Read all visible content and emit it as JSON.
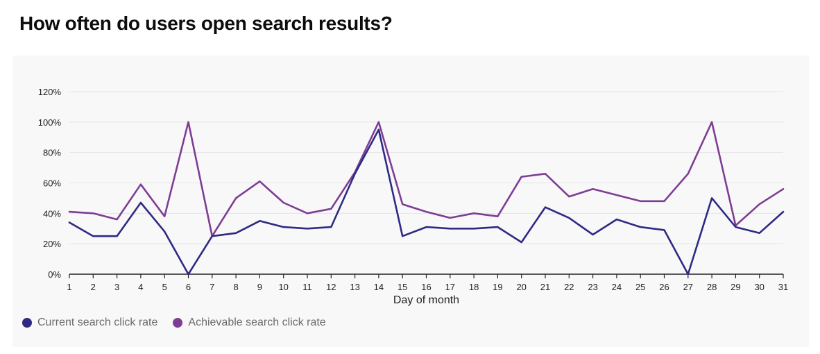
{
  "title": "How often do users open search results?",
  "colors": {
    "current": "#2e2a84",
    "achievable": "#7e3d93",
    "grid": "#e4e4e8",
    "axis": "#222222"
  },
  "chart_data": {
    "type": "line",
    "xlabel": "Day of month",
    "ylabel": "",
    "x": [
      1,
      2,
      3,
      4,
      5,
      6,
      7,
      8,
      9,
      10,
      11,
      12,
      13,
      14,
      15,
      16,
      17,
      18,
      19,
      20,
      21,
      22,
      23,
      24,
      25,
      26,
      27,
      28,
      29,
      30,
      31
    ],
    "ylim": [
      0,
      120
    ],
    "yticks": [
      0,
      20,
      40,
      60,
      80,
      100,
      120
    ],
    "ytick_labels": [
      "0%",
      "20%",
      "40%",
      "60%",
      "80%",
      "100%",
      "120%"
    ],
    "grid": true,
    "legend_position": "bottom-left",
    "series": [
      {
        "name": "Current search click rate",
        "color": "#2e2a84",
        "values": [
          34,
          25,
          25,
          47,
          28,
          0,
          25,
          27,
          35,
          31,
          30,
          31,
          66,
          95,
          25,
          31,
          30,
          30,
          31,
          21,
          44,
          37,
          26,
          36,
          31,
          29,
          0,
          50,
          31,
          27,
          41
        ]
      },
      {
        "name": "Achievable search click rate",
        "color": "#7e3d93",
        "values": [
          41,
          40,
          36,
          59,
          38,
          100,
          25,
          50,
          61,
          47,
          40,
          43,
          67,
          100,
          46,
          41,
          37,
          40,
          38,
          64,
          66,
          51,
          56,
          52,
          48,
          48,
          66,
          100,
          32,
          46,
          56
        ]
      }
    ]
  }
}
